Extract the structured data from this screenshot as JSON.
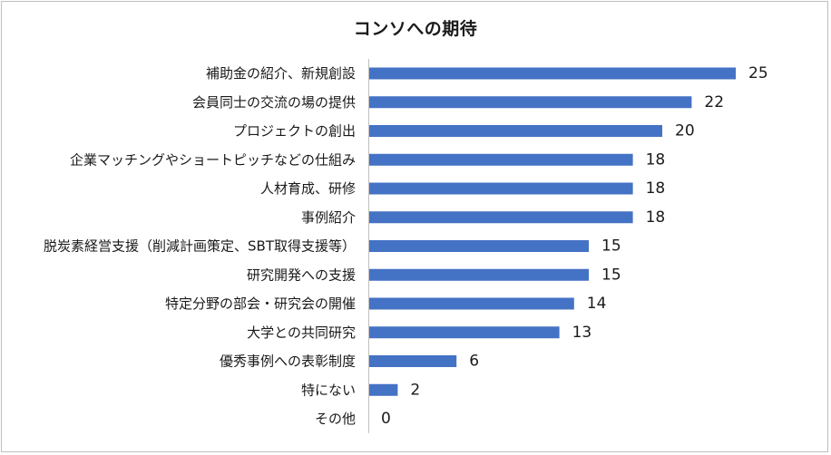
{
  "chart_data": {
    "type": "bar",
    "orientation": "horizontal",
    "title": "コンソへの期待",
    "categories": [
      "補助金の紹介、新規創設",
      "会員同士の交流の場の提供",
      "プロジェクトの創出",
      "企業マッチングやショートピッチなどの仕組み",
      "人材育成、研修",
      "事例紹介",
      "脱炭素経営支援（削減計画策定、SBT取得支援等）",
      "研究開発への支援",
      "特定分野の部会・研究会の開催",
      "大学との共同研究",
      "優秀事例への表彰制度",
      "特にない",
      "その他"
    ],
    "values": [
      25,
      22,
      20,
      18,
      18,
      18,
      15,
      15,
      14,
      13,
      6,
      2,
      0
    ],
    "xlim": [
      0,
      25
    ],
    "grid": false,
    "legend": "none",
    "colors": {
      "bar": "#4472c4",
      "axis": "#bfbfbf",
      "text": "#1a1a1a"
    }
  }
}
